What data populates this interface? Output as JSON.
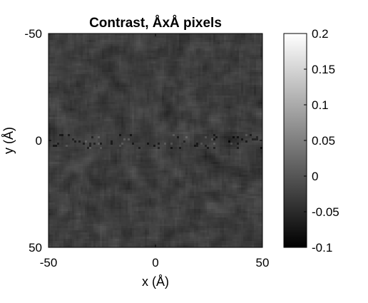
{
  "chart_data": {
    "type": "heatmap",
    "title": "Contrast, ÅxÅ pixels",
    "xlabel": "x (Å)",
    "ylabel": "y (Å)",
    "xlim": [
      -50,
      50
    ],
    "ylim": [
      -50,
      50
    ],
    "y_direction": "down",
    "x_ticks": [
      "-50",
      "0",
      "50"
    ],
    "y_ticks": [
      "-50",
      "0",
      "50"
    ],
    "colormap": "gray",
    "clim": [
      -0.1,
      0.2
    ],
    "colorbar_ticks": [
      "0.2",
      "0.15",
      "0.1",
      "0.05",
      "0",
      "-0.05",
      "-0.1"
    ],
    "colorbar_ticks_values": [
      0.2,
      0.15,
      0.1,
      0.05,
      0,
      -0.05,
      -0.1
    ],
    "field": {
      "grid_size": 100,
      "mean_value": -0.03,
      "noise_range": [
        -0.06,
        0.0
      ],
      "feature": "faint horizontal band of dark/bright specks around y ≈ 0"
    },
    "colors": {
      "low": "#000000",
      "high": "#ffffff",
      "frame": "#000000"
    }
  }
}
